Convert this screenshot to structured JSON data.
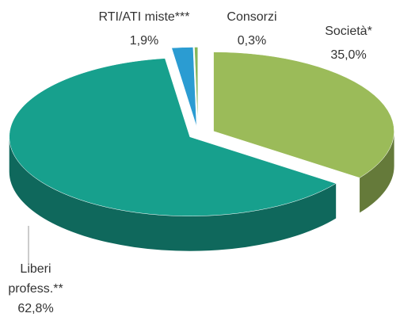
{
  "chart_data": {
    "type": "pie3d",
    "categories": [
      "Società*",
      "Liberi profess.**",
      "RTI/ATI miste***",
      "Consorzi"
    ],
    "values": [
      35.0,
      62.8,
      1.9,
      0.3
    ],
    "value_labels": [
      "35,0%",
      "62,8%",
      "1,9%",
      "0,3%"
    ],
    "colors": [
      "#9bbb59",
      "#17a08d",
      "#2b9cd2",
      "#86b75a"
    ]
  }
}
